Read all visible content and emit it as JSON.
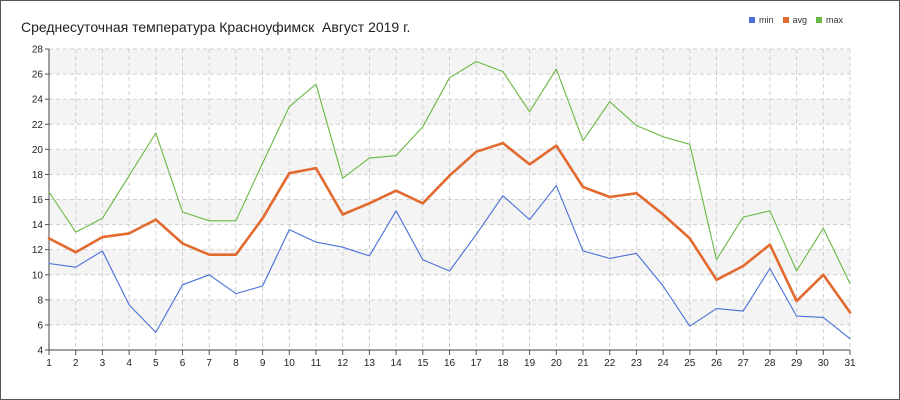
{
  "chart_data": {
    "type": "line",
    "title": "Среднесуточная температура Красноуфимск  Август 2019 г.",
    "xlabel": "",
    "ylabel": "",
    "x": [
      1,
      2,
      3,
      4,
      5,
      6,
      7,
      8,
      9,
      10,
      11,
      12,
      13,
      14,
      15,
      16,
      17,
      18,
      19,
      20,
      21,
      22,
      23,
      24,
      25,
      26,
      27,
      28,
      29,
      30,
      31
    ],
    "ylim": [
      4,
      28
    ],
    "yticks": [
      4,
      6,
      8,
      10,
      12,
      14,
      16,
      18,
      20,
      22,
      24,
      26,
      28
    ],
    "grid": true,
    "legend_position": "top-right",
    "series": [
      {
        "name": "min",
        "color": "#4a6fd8",
        "values": [
          10.9,
          10.6,
          11.9,
          7.6,
          5.4,
          9.2,
          10.0,
          8.5,
          9.1,
          13.6,
          12.6,
          12.2,
          11.5,
          15.1,
          11.2,
          10.3,
          13.2,
          16.3,
          14.4,
          17.1,
          11.9,
          11.3,
          11.7,
          9.1,
          5.9,
          7.3,
          7.1,
          10.5,
          6.7,
          6.6,
          4.9
        ]
      },
      {
        "name": "avg",
        "color": "#e36a2e",
        "values": [
          12.9,
          11.8,
          13.0,
          13.3,
          14.4,
          12.5,
          11.6,
          11.6,
          14.5,
          18.1,
          18.5,
          14.8,
          15.7,
          16.7,
          15.7,
          17.9,
          19.8,
          20.5,
          18.8,
          20.3,
          17.0,
          16.2,
          16.5,
          14.8,
          12.9,
          9.6,
          10.7,
          12.4,
          7.9,
          10.0,
          7.0
        ]
      },
      {
        "name": "max",
        "color": "#6ab844",
        "values": [
          16.6,
          13.4,
          14.5,
          17.9,
          21.3,
          15.0,
          14.3,
          14.3,
          18.9,
          23.4,
          25.2,
          17.7,
          19.3,
          19.5,
          21.8,
          25.7,
          27.0,
          26.2,
          23.0,
          26.4,
          20.7,
          23.8,
          21.9,
          21.0,
          20.4,
          11.2,
          14.6,
          15.1,
          10.3,
          13.7,
          9.3
        ]
      }
    ]
  }
}
